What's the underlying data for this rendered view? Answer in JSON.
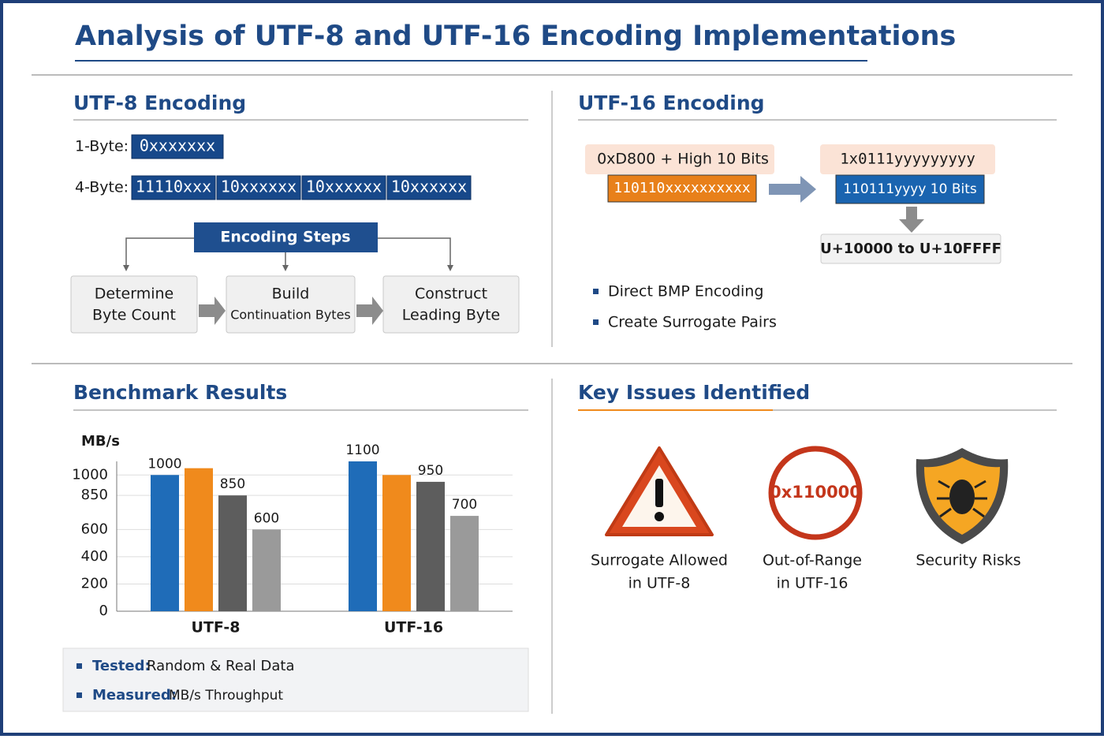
{
  "title": "Analysis of UTF-8 and UTF-16 Encoding Implementations",
  "utf8": {
    "heading": "UTF-8 Encoding",
    "rows": [
      {
        "label": "1-Byte:",
        "bytes": [
          "0xxxxxxx"
        ]
      },
      {
        "label": "4-Byte:",
        "bytes": [
          "11110xxx",
          "10xxxxxx",
          "10xxxxxx",
          "10xxxxxx"
        ]
      }
    ],
    "steps_title": "Encoding Steps",
    "steps": [
      [
        "Determine",
        "Byte Count"
      ],
      [
        "Build",
        "Continuation Bytes"
      ],
      [
        "Construct",
        "Leading Byte"
      ]
    ]
  },
  "utf16": {
    "heading": "UTF-16 Encoding",
    "high_label": "0xD800 + High 10 Bits",
    "high_bits": "110110xxxxxxxxxx",
    "low_label": "1x0111yyyyyyyyy",
    "low_bits": "110111yyyy 10 Bits",
    "range": "U+10000 to U+10FFFF",
    "bullets": [
      "Direct BMP Encoding",
      "Create Surrogate Pairs"
    ]
  },
  "benchmark": {
    "heading": "Benchmark Results",
    "notes": [
      {
        "key": "Tested:",
        "text": "Random & Real Data"
      },
      {
        "key": "Measured:",
        "text": "MB/s Throughput"
      }
    ]
  },
  "chart_data": {
    "type": "bar",
    "y_label": "MB/s",
    "categories": [
      "UTF-8",
      "UTF-16"
    ],
    "series": [
      {
        "color": "#1f6cb8",
        "values": [
          1000,
          1100
        ],
        "show_labels": true
      },
      {
        "color": "#f08a1c",
        "values": [
          1050,
          1000
        ],
        "show_labels": false
      },
      {
        "color": "#5d5d5d",
        "values": [
          850,
          950
        ],
        "show_labels": true
      },
      {
        "color": "#9a9a9a",
        "values": [
          600,
          700
        ],
        "show_labels": true
      }
    ],
    "ylim": [
      0,
      1100
    ],
    "yticks": [
      0,
      200,
      400,
      600,
      850,
      1000
    ],
    "grid": true
  },
  "issues": {
    "heading": "Key Issues Identified",
    "items": [
      {
        "label": [
          "Surrogate Allowed",
          "in UTF-8"
        ]
      },
      {
        "badge": "0x110000",
        "label": [
          "Out-of-Range",
          "in UTF-16"
        ]
      },
      {
        "label": [
          "Security Risks"
        ]
      }
    ]
  }
}
